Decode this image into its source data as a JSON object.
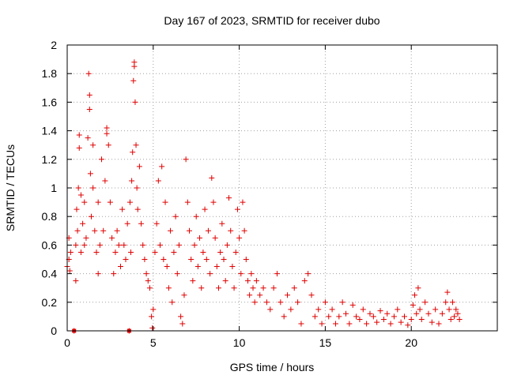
{
  "chart_data": {
    "type": "scatter",
    "title": "Day 167 of 2023, SRMTID for receiver dubo",
    "xlabel": "GPS time / hours",
    "ylabel": "SRMTID / TECUs",
    "xlim": [
      0,
      25
    ],
    "ylim": [
      0,
      2
    ],
    "xticks": [
      0,
      5,
      10,
      15,
      20
    ],
    "yticks": [
      0,
      0.2,
      0.4,
      0.6,
      0.8,
      1,
      1.2,
      1.4,
      1.6,
      1.8,
      2
    ],
    "xtick_labels": [
      "0",
      "5",
      "10",
      "15",
      "20"
    ],
    "ytick_labels": [
      "0",
      "0.2",
      "0.4",
      "0.6",
      "0.8",
      "1",
      "1.2",
      "1.4",
      "1.6",
      "1.8",
      "2"
    ],
    "grid": true,
    "marker": "plus",
    "color": "#e00000",
    "series": [
      {
        "name": "srmtid",
        "points": [
          [
            0.0,
            0.45
          ],
          [
            0.1,
            0.65
          ],
          [
            0.1,
            0.5
          ],
          [
            0.15,
            0.42
          ],
          [
            0.2,
            0.55
          ],
          [
            0.4,
            0.0
          ],
          [
            0.5,
            0.35
          ],
          [
            0.5,
            0.6
          ],
          [
            0.55,
            0.85
          ],
          [
            0.6,
            0.7
          ],
          [
            0.65,
            1.0
          ],
          [
            0.7,
            1.28
          ],
          [
            0.7,
            1.37
          ],
          [
            0.8,
            0.55
          ],
          [
            0.8,
            0.95
          ],
          [
            0.9,
            0.75
          ],
          [
            1.0,
            0.6
          ],
          [
            1.0,
            0.9
          ],
          [
            1.1,
            0.65
          ],
          [
            1.2,
            1.35
          ],
          [
            1.25,
            1.8
          ],
          [
            1.3,
            1.65
          ],
          [
            1.3,
            1.55
          ],
          [
            1.35,
            1.1
          ],
          [
            1.4,
            0.8
          ],
          [
            1.5,
            1.3
          ],
          [
            1.5,
            1.0
          ],
          [
            1.6,
            0.7
          ],
          [
            1.7,
            0.55
          ],
          [
            1.8,
            0.4
          ],
          [
            1.8,
            0.9
          ],
          [
            1.9,
            0.6
          ],
          [
            2.0,
            1.2
          ],
          [
            2.1,
            0.7
          ],
          [
            2.2,
            1.05
          ],
          [
            2.3,
            1.38
          ],
          [
            2.3,
            1.42
          ],
          [
            2.4,
            1.3
          ],
          [
            2.5,
            0.9
          ],
          [
            2.6,
            0.65
          ],
          [
            2.7,
            0.4
          ],
          [
            2.8,
            0.55
          ],
          [
            2.9,
            0.7
          ],
          [
            3.0,
            0.6
          ],
          [
            3.1,
            0.45
          ],
          [
            3.2,
            0.85
          ],
          [
            3.3,
            0.6
          ],
          [
            3.4,
            0.5
          ],
          [
            3.5,
            0.75
          ],
          [
            3.6,
            0.0
          ],
          [
            3.65,
            0.9
          ],
          [
            3.7,
            0.55
          ],
          [
            3.75,
            1.05
          ],
          [
            3.8,
            1.25
          ],
          [
            3.85,
            1.75
          ],
          [
            3.9,
            1.85
          ],
          [
            3.9,
            1.88
          ],
          [
            3.95,
            1.6
          ],
          [
            4.0,
            1.3
          ],
          [
            4.05,
            1.0
          ],
          [
            4.1,
            0.85
          ],
          [
            4.2,
            1.15
          ],
          [
            4.3,
            0.75
          ],
          [
            4.4,
            0.6
          ],
          [
            4.5,
            0.5
          ],
          [
            4.6,
            0.4
          ],
          [
            4.7,
            0.35
          ],
          [
            4.8,
            0.3
          ],
          [
            4.9,
            0.1
          ],
          [
            4.95,
            0.02
          ],
          [
            5.0,
            0.15
          ],
          [
            5.1,
            0.55
          ],
          [
            5.2,
            0.75
          ],
          [
            5.3,
            1.05
          ],
          [
            5.4,
            0.6
          ],
          [
            5.5,
            1.15
          ],
          [
            5.6,
            0.5
          ],
          [
            5.7,
            0.9
          ],
          [
            5.8,
            0.45
          ],
          [
            5.9,
            0.3
          ],
          [
            6.0,
            0.7
          ],
          [
            6.1,
            0.2
          ],
          [
            6.2,
            0.55
          ],
          [
            6.3,
            0.8
          ],
          [
            6.4,
            0.4
          ],
          [
            6.5,
            0.6
          ],
          [
            6.6,
            0.1
          ],
          [
            6.7,
            0.05
          ],
          [
            6.8,
            0.25
          ],
          [
            6.9,
            1.2
          ],
          [
            7.0,
            0.9
          ],
          [
            7.1,
            0.7
          ],
          [
            7.2,
            0.5
          ],
          [
            7.3,
            0.35
          ],
          [
            7.4,
            0.6
          ],
          [
            7.5,
            0.8
          ],
          [
            7.6,
            0.45
          ],
          [
            7.7,
            0.65
          ],
          [
            7.8,
            0.3
          ],
          [
            7.9,
            0.55
          ],
          [
            8.0,
            0.85
          ],
          [
            8.1,
            0.5
          ],
          [
            8.2,
            0.7
          ],
          [
            8.3,
            0.4
          ],
          [
            8.4,
            1.07
          ],
          [
            8.5,
            0.9
          ],
          [
            8.6,
            0.65
          ],
          [
            8.7,
            0.45
          ],
          [
            8.8,
            0.3
          ],
          [
            8.9,
            0.55
          ],
          [
            9.0,
            0.75
          ],
          [
            9.1,
            0.5
          ],
          [
            9.2,
            0.35
          ],
          [
            9.3,
            0.6
          ],
          [
            9.4,
            0.93
          ],
          [
            9.5,
            0.7
          ],
          [
            9.6,
            0.45
          ],
          [
            9.7,
            0.3
          ],
          [
            9.8,
            0.55
          ],
          [
            9.9,
            0.85
          ],
          [
            10.0,
            0.65
          ],
          [
            10.1,
            0.4
          ],
          [
            10.2,
            0.9
          ],
          [
            10.3,
            0.7
          ],
          [
            10.4,
            0.5
          ],
          [
            10.5,
            0.35
          ],
          [
            10.6,
            0.25
          ],
          [
            10.7,
            0.4
          ],
          [
            10.8,
            0.3
          ],
          [
            10.9,
            0.2
          ],
          [
            11.0,
            0.35
          ],
          [
            11.2,
            0.25
          ],
          [
            11.4,
            0.3
          ],
          [
            11.6,
            0.2
          ],
          [
            11.8,
            0.15
          ],
          [
            12.0,
            0.3
          ],
          [
            12.2,
            0.4
          ],
          [
            12.4,
            0.2
          ],
          [
            12.6,
            0.1
          ],
          [
            12.8,
            0.25
          ],
          [
            13.0,
            0.15
          ],
          [
            13.2,
            0.3
          ],
          [
            13.4,
            0.2
          ],
          [
            13.6,
            0.05
          ],
          [
            13.8,
            0.35
          ],
          [
            14.0,
            0.4
          ],
          [
            14.2,
            0.25
          ],
          [
            14.4,
            0.1
          ],
          [
            14.6,
            0.15
          ],
          [
            14.8,
            0.05
          ],
          [
            15.0,
            0.2
          ],
          [
            15.2,
            0.1
          ],
          [
            15.4,
            0.15
          ],
          [
            15.6,
            0.05
          ],
          [
            15.8,
            0.1
          ],
          [
            16.0,
            0.2
          ],
          [
            16.2,
            0.12
          ],
          [
            16.4,
            0.05
          ],
          [
            16.6,
            0.18
          ],
          [
            16.8,
            0.1
          ],
          [
            17.0,
            0.08
          ],
          [
            17.2,
            0.15
          ],
          [
            17.4,
            0.05
          ],
          [
            17.6,
            0.12
          ],
          [
            17.8,
            0.1
          ],
          [
            18.0,
            0.06
          ],
          [
            18.2,
            0.14
          ],
          [
            18.4,
            0.08
          ],
          [
            18.6,
            0.12
          ],
          [
            18.8,
            0.05
          ],
          [
            19.0,
            0.1
          ],
          [
            19.2,
            0.15
          ],
          [
            19.4,
            0.06
          ],
          [
            19.6,
            0.1
          ],
          [
            19.8,
            0.04
          ],
          [
            20.0,
            0.08
          ],
          [
            20.1,
            0.18
          ],
          [
            20.2,
            0.25
          ],
          [
            20.3,
            0.12
          ],
          [
            20.4,
            0.3
          ],
          [
            20.5,
            0.15
          ],
          [
            20.6,
            0.08
          ],
          [
            20.8,
            0.2
          ],
          [
            21.0,
            0.12
          ],
          [
            21.2,
            0.06
          ],
          [
            21.4,
            0.15
          ],
          [
            21.6,
            0.05
          ],
          [
            21.8,
            0.12
          ],
          [
            22.0,
            0.2
          ],
          [
            22.1,
            0.27
          ],
          [
            22.2,
            0.15
          ],
          [
            22.3,
            0.08
          ],
          [
            22.4,
            0.2
          ],
          [
            22.5,
            0.1
          ],
          [
            22.6,
            0.15
          ],
          [
            22.7,
            0.12
          ],
          [
            22.8,
            0.08
          ]
        ],
        "squares": [
          [
            0.4,
            0.0
          ],
          [
            3.6,
            0.0
          ]
        ]
      }
    ]
  }
}
